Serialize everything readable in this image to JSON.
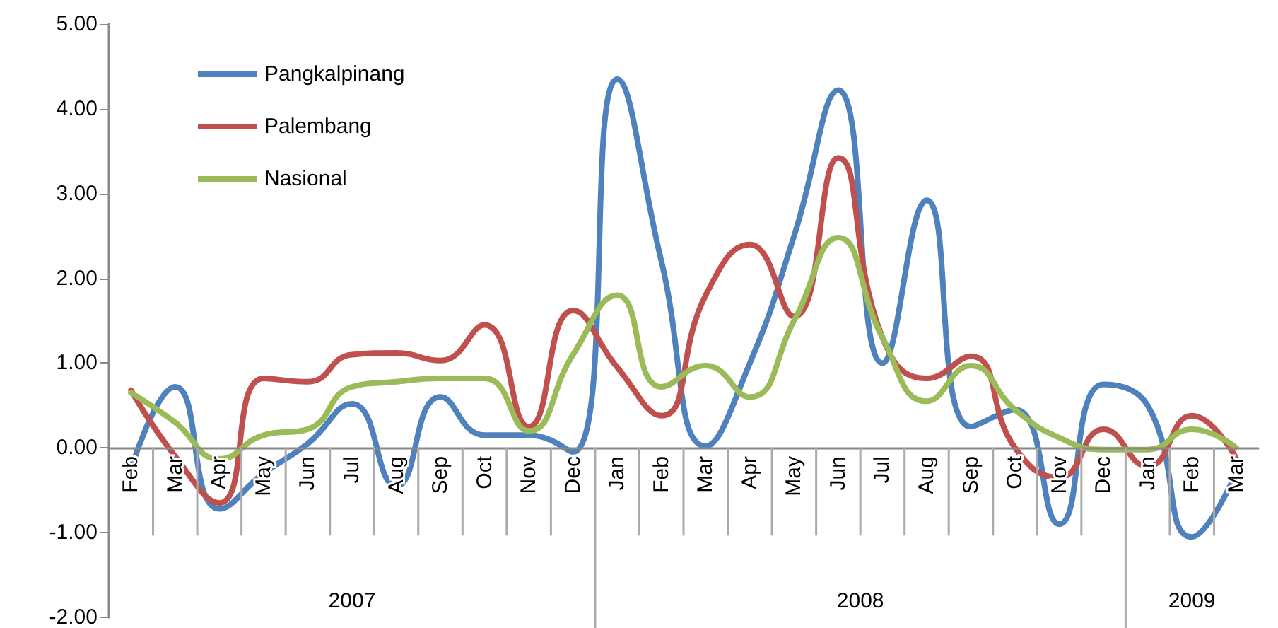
{
  "chart_data": {
    "type": "line",
    "categories": [
      "Feb",
      "Mar",
      "Apr",
      "May",
      "Jun",
      "Jul",
      "Aug",
      "Sep",
      "Oct",
      "Nov",
      "Dec",
      "Jan",
      "Feb",
      "Mar",
      "Apr",
      "May",
      "Jun",
      "Jul",
      "Aug",
      "Sep",
      "Oct",
      "Nov",
      "Dec",
      "Jan",
      "Feb",
      "Mar"
    ],
    "series": [
      {
        "name": "Pangkalpinang",
        "color": "#4f81bd",
        "values": [
          -0.25,
          0.72,
          -0.72,
          -0.3,
          0.05,
          0.52,
          -0.45,
          0.6,
          0.15,
          0.15,
          -0.05,
          4.35,
          2.2,
          0.02,
          1.0,
          2.5,
          4.22,
          1.0,
          2.92,
          0.25,
          0.45,
          -0.9,
          0.75,
          0.5,
          -1.05,
          -0.3
        ]
      },
      {
        "name": "Palembang",
        "color": "#c0504d",
        "values": [
          0.68,
          -0.1,
          -0.65,
          0.82,
          0.78,
          1.1,
          1.12,
          1.03,
          1.45,
          0.25,
          1.62,
          0.95,
          0.38,
          1.8,
          2.4,
          1.55,
          3.42,
          1.3,
          0.82,
          1.08,
          0.0,
          -0.35,
          0.22,
          -0.22,
          0.38,
          -0.12
        ]
      },
      {
        "name": "Nasional",
        "color": "#9bbb59",
        "values": [
          0.65,
          0.3,
          -0.13,
          0.15,
          0.22,
          0.72,
          0.78,
          0.82,
          0.82,
          0.2,
          1.1,
          1.8,
          0.72,
          0.97,
          0.6,
          1.5,
          2.48,
          1.3,
          0.55,
          0.97,
          0.45,
          0.12,
          -0.02,
          -0.02,
          0.22,
          0.0
        ]
      }
    ],
    "ylim": [
      -2,
      5
    ],
    "yticks": [
      {
        "value": -2,
        "label": "-2.00"
      },
      {
        "value": -1,
        "label": "-1.00"
      },
      {
        "value": 0,
        "label": "0.00"
      },
      {
        "value": 1,
        "label": "1.00"
      },
      {
        "value": 2,
        "label": "2.00"
      },
      {
        "value": 3,
        "label": "3.00"
      },
      {
        "value": 4,
        "label": "4.00"
      },
      {
        "value": 5,
        "label": "5.00"
      }
    ],
    "annotations": [
      "2007",
      "2008",
      "2009"
    ],
    "grid": false,
    "legend": "top left",
    "marker": "none",
    "line_style": "solid"
  }
}
